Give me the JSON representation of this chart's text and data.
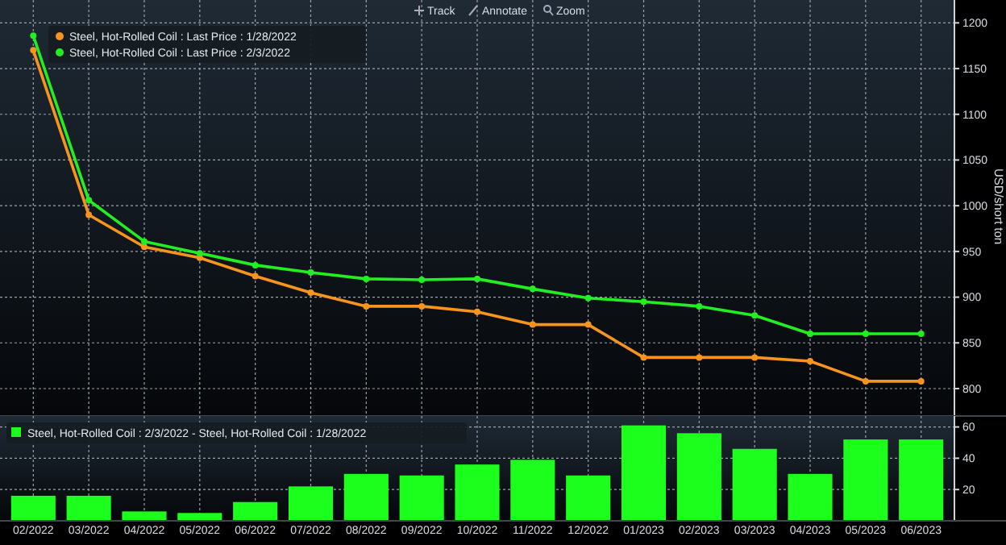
{
  "chart_data": [
    {
      "type": "line",
      "categories": [
        null,
        null,
        null,
        null,
        null,
        null,
        null,
        null,
        null,
        null,
        null,
        null,
        null,
        null,
        null,
        null,
        null
      ],
      "series": [
        {
          "name": "Steel, Hot-Rolled Coil : Last Price : 1/28/2022",
          "color": "#f7941d",
          "values": [
            1170,
            990,
            955,
            943,
            923,
            905,
            890,
            890,
            884,
            870,
            870,
            834,
            834,
            834,
            830,
            808,
            808
          ]
        },
        {
          "name": "Steel, Hot-Rolled Coil : Last Price : 2/3/2022",
          "color": "#22ee22",
          "values": [
            1186,
            1006,
            961,
            948,
            935,
            927,
            920,
            919,
            920,
            909,
            899,
            895,
            890,
            880,
            860,
            860,
            860
          ]
        }
      ],
      "ylabel": "USD/short ton",
      "ylim": [
        770,
        1225
      ],
      "yticks": [
        800,
        850,
        900,
        950,
        1000,
        1050,
        1100,
        1150,
        1200
      ],
      "grid": true,
      "legend": "top left",
      "marker": "circle",
      "tick_labels": "y",
      "annotations": [
        "Track",
        "Annotate",
        "Zoom"
      ]
    },
    {
      "type": "bar",
      "categories": [
        "02/2022",
        "03/2022",
        "04/2022",
        "05/2022",
        "06/2022",
        "07/2022",
        "08/2022",
        "09/2022",
        "10/2022",
        "11/2022",
        "12/2022",
        "01/2023",
        "02/2023",
        "03/2023",
        "04/2023",
        "05/2023",
        "06/2023"
      ],
      "series": [
        {
          "name": "Steel, Hot-Rolled Coil : 2/3/2022 - Steel, Hot-Rolled Coil : 1/28/2022",
          "color": "#1cff1c",
          "values": [
            16,
            16,
            6,
            5,
            12,
            22,
            30,
            29,
            36,
            39,
            29,
            61,
            56,
            46,
            30,
            52,
            52
          ]
        }
      ],
      "ylim": [
        0,
        67
      ],
      "yticks": [
        20,
        40,
        60
      ],
      "grid": true,
      "legend": "top left"
    }
  ]
}
